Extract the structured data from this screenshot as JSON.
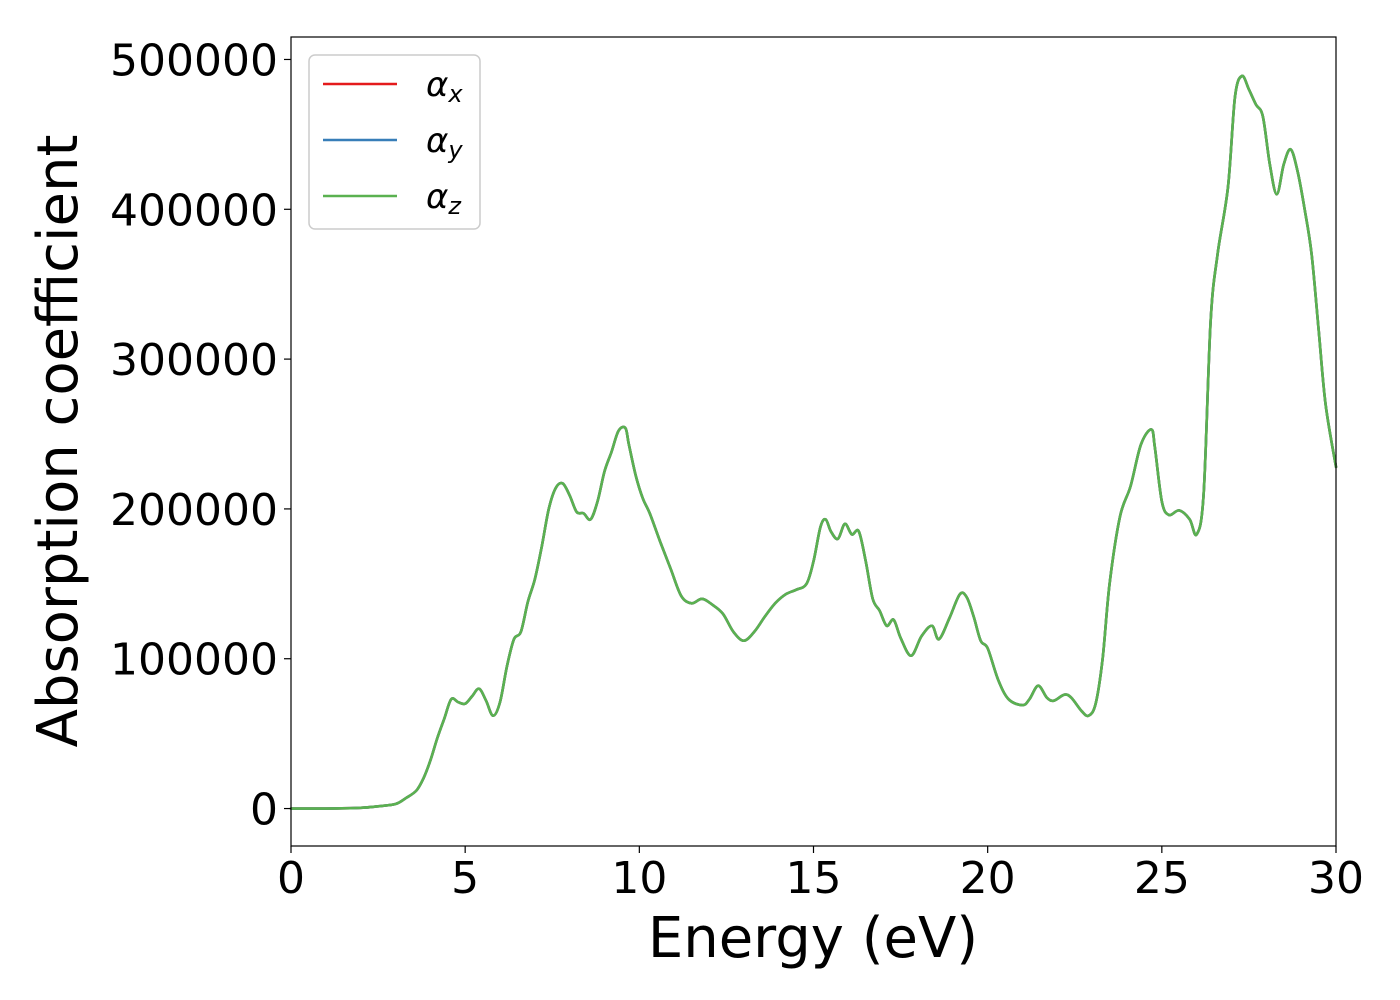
{
  "chart_data": {
    "type": "line",
    "title": "",
    "xlabel": "Energy (eV)",
    "ylabel": "Absorption coefficient",
    "xlim": [
      0,
      30
    ],
    "ylim": [
      -25000,
      515000
    ],
    "xticks": [
      0,
      5,
      10,
      15,
      20,
      25,
      30
    ],
    "xtick_labels": [
      "0",
      "5",
      "10",
      "15",
      "20",
      "25",
      "30"
    ],
    "yticks": [
      0,
      100000,
      200000,
      300000,
      400000,
      500000
    ],
    "ytick_labels": [
      "0",
      "100000",
      "200000",
      "300000",
      "400000",
      "500000"
    ],
    "grid": false,
    "legend_position": "top-left",
    "series": [
      {
        "name": "α_x",
        "legend_symbol": "α",
        "legend_sub": "x",
        "color": "#e41a1c",
        "x": [
          0,
          1,
          2,
          2.5,
          3,
          3.3,
          3.6,
          3.8,
          4.0,
          4.2,
          4.4,
          4.6,
          4.8,
          5.0,
          5.2,
          5.4,
          5.6,
          5.8,
          6.0,
          6.2,
          6.4,
          6.6,
          6.8,
          7.0,
          7.2,
          7.4,
          7.6,
          7.8,
          8.0,
          8.2,
          8.4,
          8.6,
          8.8,
          9.0,
          9.2,
          9.4,
          9.6,
          9.7,
          9.9,
          10.1,
          10.3,
          10.6,
          10.9,
          11.2,
          11.5,
          11.8,
          12.1,
          12.4,
          12.7,
          13.0,
          13.3,
          13.6,
          13.9,
          14.2,
          14.5,
          14.8,
          15.0,
          15.2,
          15.35,
          15.5,
          15.7,
          15.9,
          16.1,
          16.3,
          16.5,
          16.7,
          16.9,
          17.1,
          17.3,
          17.5,
          17.8,
          18.1,
          18.4,
          18.6,
          18.9,
          19.2,
          19.4,
          19.6,
          19.8,
          20.0,
          20.3,
          20.6,
          21.0,
          21.2,
          21.45,
          21.7,
          21.9,
          22.2,
          22.4,
          22.7,
          22.9,
          23.1,
          23.3,
          23.5,
          23.8,
          24.1,
          24.4,
          24.7,
          24.8,
          25.0,
          25.2,
          25.5,
          25.8,
          26.0,
          26.2,
          26.4,
          26.6,
          26.9,
          27.1,
          27.3,
          27.5,
          27.7,
          27.9,
          28.1,
          28.3,
          28.5,
          28.7,
          28.9,
          29.1,
          29.3,
          29.5,
          29.7,
          30
        ],
        "y": [
          0,
          0,
          500,
          1500,
          3000,
          7000,
          12000,
          20000,
          32000,
          47000,
          60000,
          73000,
          71000,
          70000,
          75000,
          80000,
          72000,
          62000,
          71000,
          95000,
          113000,
          118000,
          138000,
          153000,
          175000,
          200000,
          214000,
          217000,
          209000,
          198000,
          197000,
          193000,
          205000,
          225000,
          238000,
          252000,
          254000,
          243000,
          222000,
          207000,
          197000,
          178000,
          160000,
          142000,
          137000,
          140000,
          136000,
          130000,
          118000,
          112000,
          118000,
          128000,
          137000,
          143000,
          146000,
          150000,
          165000,
          188000,
          193000,
          185000,
          180000,
          190000,
          183000,
          185000,
          165000,
          140000,
          132000,
          122000,
          126000,
          114000,
          102000,
          115000,
          122000,
          113000,
          127000,
          143000,
          141000,
          128000,
          112000,
          107000,
          86000,
          73000,
          69000,
          73000,
          82000,
          74000,
          72000,
          76000,
          74000,
          65000,
          62000,
          70000,
          100000,
          150000,
          195000,
          215000,
          243000,
          253000,
          241000,
          205000,
          196000,
          199000,
          193000,
          183000,
          210000,
          325000,
          370000,
          415000,
          475000,
          489000,
          480000,
          470000,
          462000,
          430000,
          410000,
          430000,
          440000,
          425000,
          400000,
          370000,
          320000,
          270000,
          228000
        ]
      },
      {
        "name": "α_y",
        "legend_symbol": "α",
        "legend_sub": "y",
        "color": "#377eb8",
        "x": [
          0,
          1,
          2,
          2.5,
          3,
          3.3,
          3.6,
          3.8,
          4.0,
          4.2,
          4.4,
          4.6,
          4.8,
          5.0,
          5.2,
          5.4,
          5.6,
          5.8,
          6.0,
          6.2,
          6.4,
          6.6,
          6.8,
          7.0,
          7.2,
          7.4,
          7.6,
          7.8,
          8.0,
          8.2,
          8.4,
          8.6,
          8.8,
          9.0,
          9.2,
          9.4,
          9.6,
          9.7,
          9.9,
          10.1,
          10.3,
          10.6,
          10.9,
          11.2,
          11.5,
          11.8,
          12.1,
          12.4,
          12.7,
          13.0,
          13.3,
          13.6,
          13.9,
          14.2,
          14.5,
          14.8,
          15.0,
          15.2,
          15.35,
          15.5,
          15.7,
          15.9,
          16.1,
          16.3,
          16.5,
          16.7,
          16.9,
          17.1,
          17.3,
          17.5,
          17.8,
          18.1,
          18.4,
          18.6,
          18.9,
          19.2,
          19.4,
          19.6,
          19.8,
          20.0,
          20.3,
          20.6,
          21.0,
          21.2,
          21.45,
          21.7,
          21.9,
          22.2,
          22.4,
          22.7,
          22.9,
          23.1,
          23.3,
          23.5,
          23.8,
          24.1,
          24.4,
          24.7,
          24.8,
          25.0,
          25.2,
          25.5,
          25.8,
          26.0,
          26.2,
          26.4,
          26.6,
          26.9,
          27.1,
          27.3,
          27.5,
          27.7,
          27.9,
          28.1,
          28.3,
          28.5,
          28.7,
          28.9,
          29.1,
          29.3,
          29.5,
          29.7,
          30
        ],
        "y": [
          0,
          0,
          500,
          1500,
          3000,
          7000,
          12000,
          20000,
          32000,
          47000,
          60000,
          73000,
          71000,
          70000,
          75000,
          80000,
          72000,
          62000,
          71000,
          95000,
          113000,
          118000,
          138000,
          153000,
          175000,
          200000,
          214000,
          217000,
          209000,
          198000,
          197000,
          193000,
          205000,
          225000,
          238000,
          252000,
          254000,
          243000,
          222000,
          207000,
          197000,
          178000,
          160000,
          142000,
          137000,
          140000,
          136000,
          130000,
          118000,
          112000,
          118000,
          128000,
          137000,
          143000,
          146000,
          150000,
          165000,
          188000,
          193000,
          185000,
          180000,
          190000,
          183000,
          185000,
          165000,
          140000,
          132000,
          122000,
          126000,
          114000,
          102000,
          115000,
          122000,
          113000,
          127000,
          143000,
          141000,
          128000,
          112000,
          107000,
          86000,
          73000,
          69000,
          73000,
          82000,
          74000,
          72000,
          76000,
          74000,
          65000,
          62000,
          70000,
          100000,
          150000,
          195000,
          215000,
          243000,
          253000,
          241000,
          205000,
          196000,
          199000,
          193000,
          183000,
          210000,
          325000,
          370000,
          415000,
          475000,
          489000,
          480000,
          470000,
          462000,
          430000,
          410000,
          430000,
          440000,
          425000,
          400000,
          370000,
          320000,
          270000,
          228000
        ]
      },
      {
        "name": "α_z",
        "legend_symbol": "α",
        "legend_sub": "z",
        "color": "#5ab150",
        "x": [
          0,
          1,
          2,
          2.5,
          3,
          3.3,
          3.6,
          3.8,
          4.0,
          4.2,
          4.4,
          4.6,
          4.8,
          5.0,
          5.2,
          5.4,
          5.6,
          5.8,
          6.0,
          6.2,
          6.4,
          6.6,
          6.8,
          7.0,
          7.2,
          7.4,
          7.6,
          7.8,
          8.0,
          8.2,
          8.4,
          8.6,
          8.8,
          9.0,
          9.2,
          9.4,
          9.6,
          9.7,
          9.9,
          10.1,
          10.3,
          10.6,
          10.9,
          11.2,
          11.5,
          11.8,
          12.1,
          12.4,
          12.7,
          13.0,
          13.3,
          13.6,
          13.9,
          14.2,
          14.5,
          14.8,
          15.0,
          15.2,
          15.35,
          15.5,
          15.7,
          15.9,
          16.1,
          16.3,
          16.5,
          16.7,
          16.9,
          17.1,
          17.3,
          17.5,
          17.8,
          18.1,
          18.4,
          18.6,
          18.9,
          19.2,
          19.4,
          19.6,
          19.8,
          20.0,
          20.3,
          20.6,
          21.0,
          21.2,
          21.45,
          21.7,
          21.9,
          22.2,
          22.4,
          22.7,
          22.9,
          23.1,
          23.3,
          23.5,
          23.8,
          24.1,
          24.4,
          24.7,
          24.8,
          25.0,
          25.2,
          25.5,
          25.8,
          26.0,
          26.2,
          26.4,
          26.6,
          26.9,
          27.1,
          27.3,
          27.5,
          27.7,
          27.9,
          28.1,
          28.3,
          28.5,
          28.7,
          28.9,
          29.1,
          29.3,
          29.5,
          29.7,
          30
        ],
        "y": [
          0,
          0,
          500,
          1500,
          3000,
          7000,
          12000,
          20000,
          32000,
          47000,
          60000,
          73000,
          71000,
          70000,
          75000,
          80000,
          72000,
          62000,
          71000,
          95000,
          113000,
          118000,
          138000,
          153000,
          175000,
          200000,
          214000,
          217000,
          209000,
          198000,
          197000,
          193000,
          205000,
          225000,
          238000,
          252000,
          254000,
          243000,
          222000,
          207000,
          197000,
          178000,
          160000,
          142000,
          137000,
          140000,
          136000,
          130000,
          118000,
          112000,
          118000,
          128000,
          137000,
          143000,
          146000,
          150000,
          165000,
          188000,
          193000,
          185000,
          180000,
          190000,
          183000,
          185000,
          165000,
          140000,
          132000,
          122000,
          126000,
          114000,
          102000,
          115000,
          122000,
          113000,
          127000,
          143000,
          141000,
          128000,
          112000,
          107000,
          86000,
          73000,
          69000,
          73000,
          82000,
          74000,
          72000,
          76000,
          74000,
          65000,
          62000,
          70000,
          100000,
          150000,
          195000,
          215000,
          243000,
          253000,
          241000,
          205000,
          196000,
          199000,
          193000,
          183000,
          210000,
          325000,
          370000,
          415000,
          475000,
          489000,
          480000,
          470000,
          462000,
          430000,
          410000,
          430000,
          440000,
          425000,
          400000,
          370000,
          320000,
          270000,
          228000
        ]
      }
    ]
  }
}
